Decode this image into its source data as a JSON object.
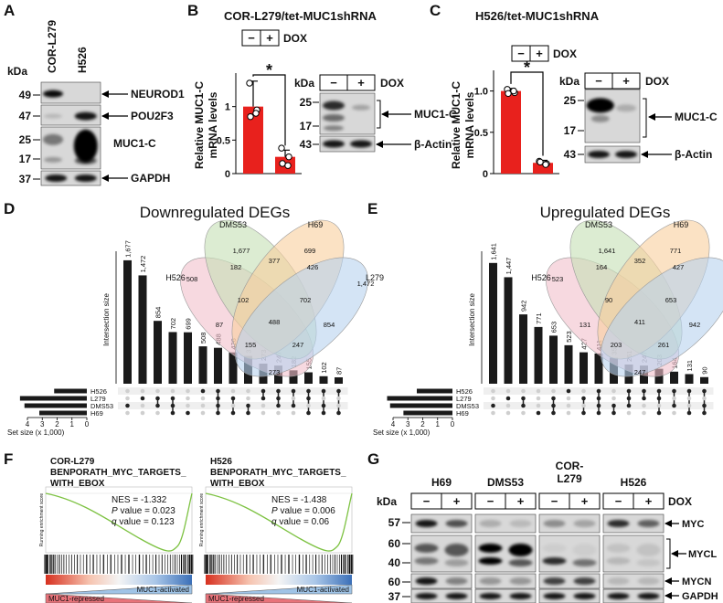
{
  "A": {
    "letter": "A",
    "lanes": [
      "COR-L279",
      "H526"
    ],
    "kda": "kDa",
    "markers": [
      "49",
      "47",
      "25",
      "17",
      "37"
    ],
    "proteins": [
      "NEUROD1",
      "POU2F3",
      "MUC1-C",
      "GAPDH"
    ]
  },
  "B": {
    "letter": "B",
    "title": "COR-L279/tet-MUC1shRNA",
    "dox": {
      "minus": "−",
      "plus": "+",
      "label": "DOX"
    },
    "chart": {
      "type": "bar",
      "ylabel": [
        "Relative MUC1-C",
        "mRNA levels"
      ],
      "values": [
        1.0,
        0.25
      ],
      "errors": [
        0.38,
        0.1
      ],
      "points": [
        [
          1.35,
          0.95,
          0.85,
          0.9
        ],
        [
          0.38,
          0.25,
          0.15,
          0.12
        ]
      ],
      "color": "#e8211d",
      "ylim": [
        0,
        1.5
      ],
      "yticks": [
        0,
        0.5,
        1
      ],
      "significance": "*"
    },
    "blot": {
      "kda": "kDa",
      "markers": [
        "25",
        "17",
        "43"
      ],
      "proteins": [
        "MUC1-C",
        "β-Actin"
      ]
    }
  },
  "C": {
    "letter": "C",
    "title": "H526/tet-MUC1shRNA",
    "dox": {
      "minus": "−",
      "plus": "+",
      "label": "DOX"
    },
    "chart": {
      "type": "bar",
      "ylabel": [
        "Relative MUC1-C",
        "mRNA levels"
      ],
      "values": [
        1.0,
        0.13
      ],
      "errors": [
        0.03,
        0.03
      ],
      "points": [
        [
          1.02,
          0.98,
          0.97,
          1.0
        ],
        [
          0.15,
          0.12,
          0.14,
          0.11
        ]
      ],
      "color": "#e8211d",
      "ylim": [
        0,
        1.25
      ],
      "yticks": [
        0,
        0.5,
        {
          "value": 1,
          "label": "1.0"
        }
      ],
      "significance": "*"
    },
    "blot": {
      "kda": "kDa",
      "markers": [
        "25",
        "17",
        "43"
      ],
      "proteins": [
        "MUC1-C",
        "β-Actin"
      ]
    }
  },
  "D": {
    "letter": "D",
    "title": "Downregulated DEGs",
    "venn": {
      "sets": [
        "H526",
        "DMS53",
        "H69",
        "L279"
      ],
      "colors": [
        "#f2bfcb",
        "#c5e0b4",
        "#f8cf9c",
        "#b8d2ee"
      ],
      "regions": [
        "1,677",
        "699",
        "508",
        "182",
        "377",
        "426",
        "1,472",
        "102",
        "702",
        "87",
        "488",
        "854",
        "155",
        "247",
        "273"
      ]
    },
    "upset": {
      "type": "upset",
      "ylabel": "Intersection size",
      "color": "#1a1a1a",
      "values": [
        1677,
        1472,
        854,
        702,
        699,
        508,
        488,
        426,
        377,
        273,
        247,
        182,
        155,
        102,
        87
      ],
      "value_labels": [
        "1,677",
        "1,472",
        "854",
        "702",
        "699",
        "508",
        "488",
        "426",
        "377",
        "273",
        "247",
        "182",
        "155",
        "102",
        "87"
      ],
      "ylim": [
        0,
        1800
      ],
      "sets": [
        "H526",
        "L279",
        "DMS53",
        "H69"
      ],
      "set_sizes": [
        2.2,
        4.5,
        4.2,
        3.2
      ],
      "set_xlim": [
        0,
        4
      ],
      "set_xticks": [
        4,
        3,
        2,
        1,
        0
      ],
      "set_xlabel": "Set size (x 1,000)"
    }
  },
  "E": {
    "letter": "E",
    "title": "Upregulated DEGs",
    "venn": {
      "sets": [
        "H526",
        "DMS53",
        "H69",
        "L279"
      ],
      "colors": [
        "#f2bfcb",
        "#c5e0b4",
        "#f8cf9c",
        "#b8d2ee"
      ],
      "regions": [
        "1,641",
        "771",
        "523",
        "164",
        "352",
        "427",
        "1,447",
        "90",
        "653",
        "131",
        "411",
        "942",
        "203",
        "261",
        "247"
      ]
    },
    "upset": {
      "type": "upset",
      "ylabel": "Intersection size",
      "color": "#1a1a1a",
      "values": [
        1641,
        1447,
        942,
        771,
        653,
        523,
        427,
        411,
        352,
        261,
        247,
        203,
        164,
        131,
        90
      ],
      "value_labels": [
        "1,641",
        "1,447",
        "942",
        "771",
        "653",
        "523",
        "427",
        "411",
        "352",
        "261",
        "247",
        "203",
        "164",
        "131",
        "90"
      ],
      "ylim": [
        0,
        1800
      ],
      "sets": [
        "H526",
        "L279",
        "DMS53",
        "H69"
      ],
      "set_sizes": [
        2.4,
        4.4,
        4.2,
        3.3
      ],
      "set_xlim": [
        0,
        4
      ],
      "set_xticks": [
        4,
        3,
        2,
        1,
        0
      ],
      "set_xlabel": "Set size (x 1,000)"
    }
  },
  "F": {
    "letter": "F",
    "ylabel": "Running enrichment score",
    "activated": "MUC1-activated",
    "repressed": "MUC1-repressed",
    "plots": [
      {
        "lines": [
          "COR-L279",
          "BENPORATH_MYC_TARGETS_",
          "WITH_EBOX"
        ],
        "nes": "NES = -1.332",
        "p": [
          "P",
          " value = 0.023"
        ],
        "q": [
          "q",
          " value = 0.123"
        ]
      },
      {
        "lines": [
          "H526",
          "BENPORATH_MYC_TARGETS_",
          "WITH_EBOX"
        ],
        "nes": "NES = -1.438",
        "p": [
          "P",
          " value = 0.006"
        ],
        "q": [
          "q",
          " value = 0.06"
        ]
      }
    ]
  },
  "G": {
    "letter": "G",
    "groups": [
      [
        "H69"
      ],
      [
        "DMS53"
      ],
      [
        "COR-",
        "L279"
      ],
      [
        "H526"
      ]
    ],
    "kda": "kDa",
    "minus": "−",
    "plus": "+",
    "dox": "DOX",
    "markers": [
      "57",
      "60",
      "40",
      "60",
      "37"
    ],
    "proteins": [
      "MYC",
      "MYCL",
      "MYCN",
      "GAPDH"
    ]
  }
}
